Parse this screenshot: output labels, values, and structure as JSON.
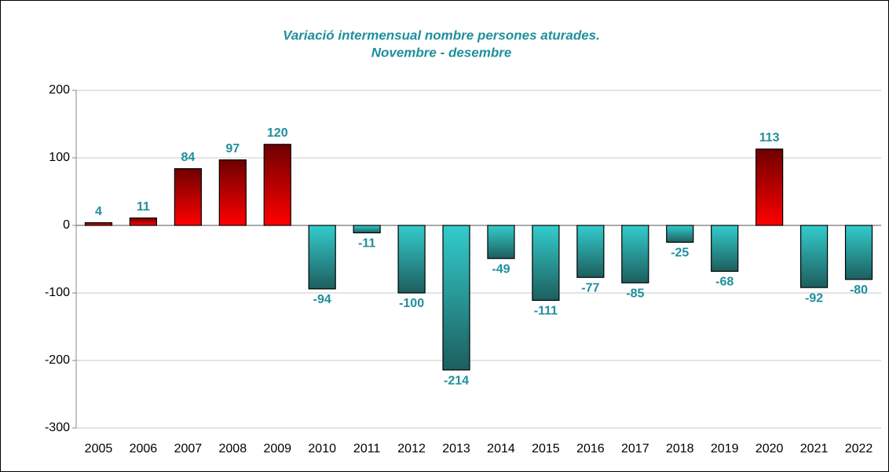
{
  "chart_data": {
    "type": "bar",
    "title": "Variació intermensual nombre persones aturades.",
    "subtitle": "Novembre - desembre",
    "categories": [
      "2005",
      "2006",
      "2007",
      "2008",
      "2009",
      "2010",
      "2011",
      "2012",
      "2013",
      "2014",
      "2015",
      "2016",
      "2017",
      "2018",
      "2019",
      "2020",
      "2021",
      "2022"
    ],
    "values": [
      4,
      11,
      84,
      97,
      120,
      -94,
      -11,
      -100,
      -214,
      -49,
      -111,
      -77,
      -85,
      -25,
      -68,
      113,
      -92,
      -80
    ],
    "positive_colors": [
      "#6e0000",
      "#ff0000"
    ],
    "negative_colors": [
      "#33cccc",
      "#1d5e5e"
    ],
    "label_color": "#1f8f9c",
    "ylim": [
      -300,
      200
    ],
    "yticks": [
      -300,
      -200,
      -100,
      0,
      100,
      200
    ],
    "grid": true
  }
}
